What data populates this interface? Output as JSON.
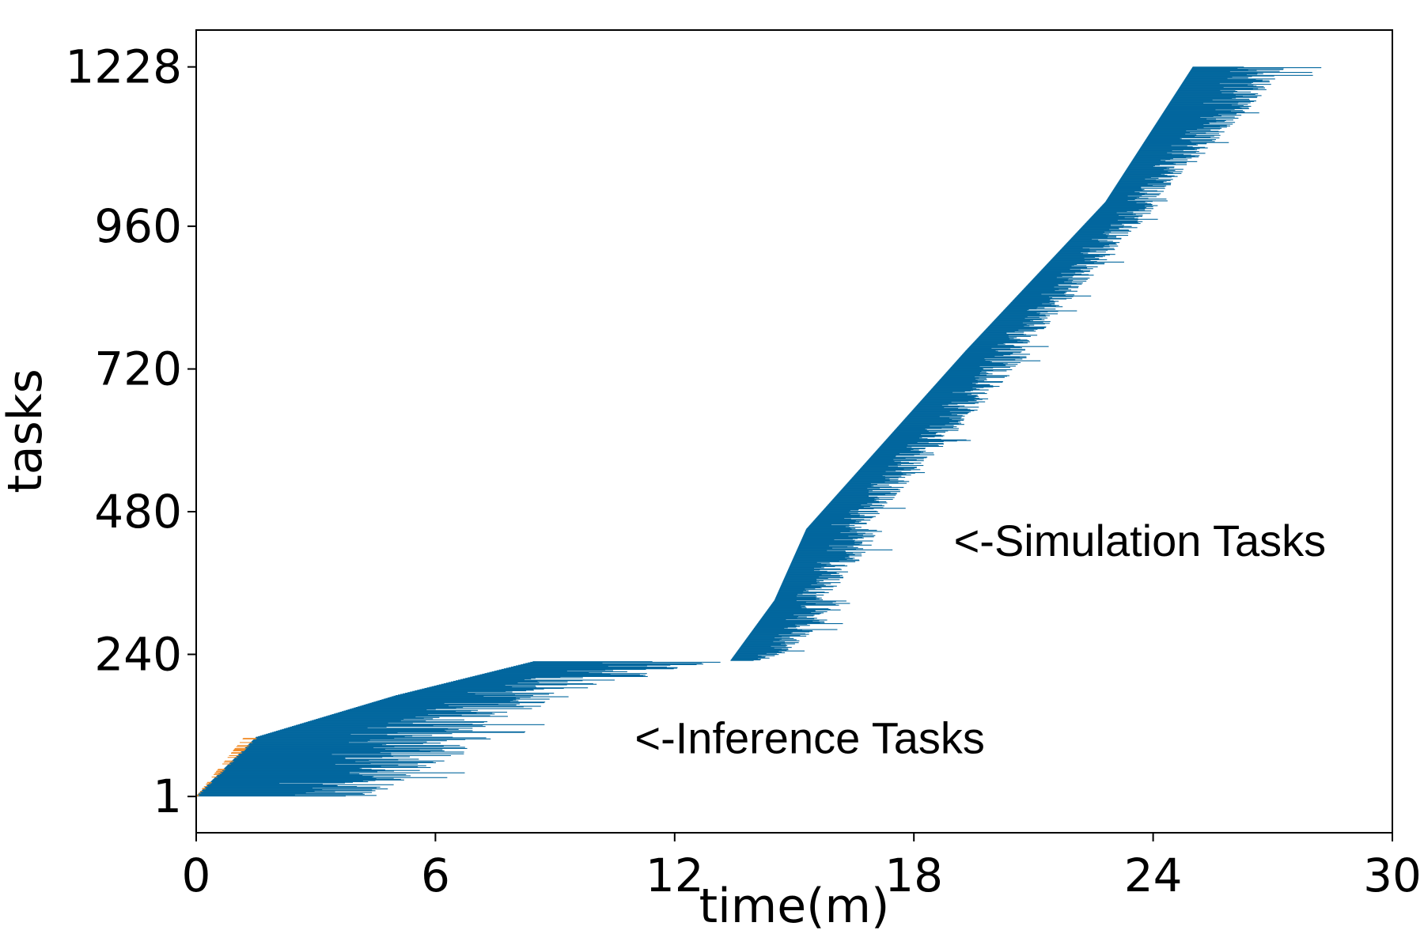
{
  "chart_data": {
    "type": "bar",
    "subtype": "horizontal-gantt",
    "xlabel": "time(m)",
    "ylabel": "tasks",
    "xlim": [
      0,
      30
    ],
    "ylim": [
      -60,
      1290
    ],
    "xticks": [
      0,
      6,
      12,
      18,
      24,
      30
    ],
    "yticks": [
      1,
      240,
      480,
      720,
      960,
      1228
    ],
    "grid": false,
    "colors": {
      "task": "#03679E",
      "queue": "#F28E2B"
    },
    "series": [
      {
        "name": "Inference Tasks",
        "task_range": [
          1,
          228
        ],
        "segments": [
          {
            "rows": [
              1,
              100
            ],
            "start": [
              0.0,
              1.5
            ],
            "end": [
              4.5,
              7.5
            ],
            "queue_wait": [
              0.0,
              1.2
            ]
          },
          {
            "rows": [
              100,
              170
            ],
            "start": [
              1.5,
              5.0
            ],
            "end": [
              6.5,
              9.5
            ]
          },
          {
            "rows": [
              170,
              228
            ],
            "start": [
              5.0,
              8.5
            ],
            "end": [
              9.0,
              13.3
            ]
          }
        ]
      },
      {
        "name": "Simulation Tasks",
        "task_range": [
          229,
          1228
        ],
        "segments": [
          {
            "rows": [
              229,
              330
            ],
            "start": [
              13.4,
              14.5
            ],
            "end": [
              14.5,
              16.6
            ]
          },
          {
            "rows": [
              330,
              450
            ],
            "start": [
              14.5,
              15.3
            ],
            "end": [
              15.8,
              17.3
            ]
          },
          {
            "rows": [
              450,
              750
            ],
            "start": [
              15.3,
              19.3
            ],
            "end": [
              16.8,
              21.0
            ]
          },
          {
            "rows": [
              750,
              1000
            ],
            "start": [
              19.3,
              22.8
            ],
            "end": [
              20.8,
              24.2
            ]
          },
          {
            "rows": [
              1000,
              1228
            ],
            "start": [
              22.8,
              25.0
            ],
            "end": [
              24.0,
              27.5
            ]
          }
        ]
      }
    ],
    "annotations": [
      {
        "text": "<-Inference Tasks",
        "x": 11.0,
        "y": 100
      },
      {
        "text": "<-Simulation Tasks",
        "x": 19.0,
        "y": 432
      }
    ]
  }
}
